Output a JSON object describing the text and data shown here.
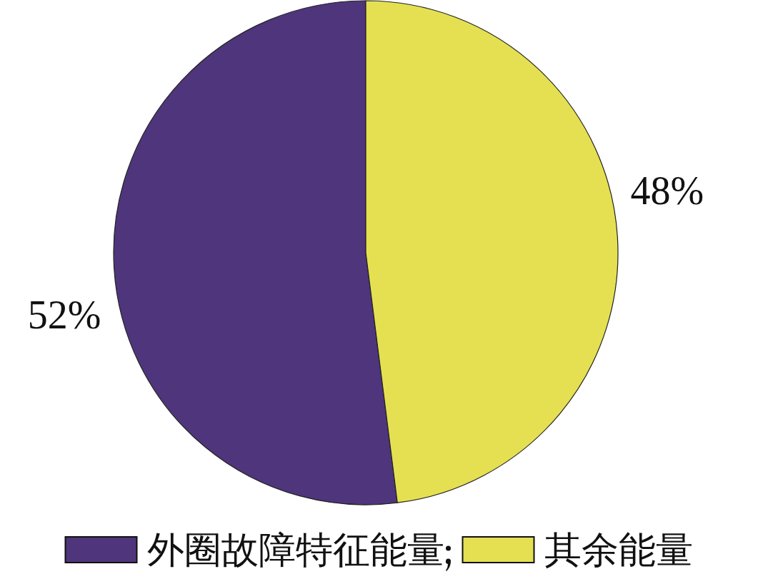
{
  "chart_data": {
    "type": "pie",
    "categories": [
      "外圈故障特征能量",
      "其余能量"
    ],
    "values": [
      52,
      48
    ],
    "value_labels": [
      "52%",
      "48%"
    ],
    "colors": [
      "#4f357c",
      "#e5e052"
    ],
    "legend": "bottom"
  }
}
